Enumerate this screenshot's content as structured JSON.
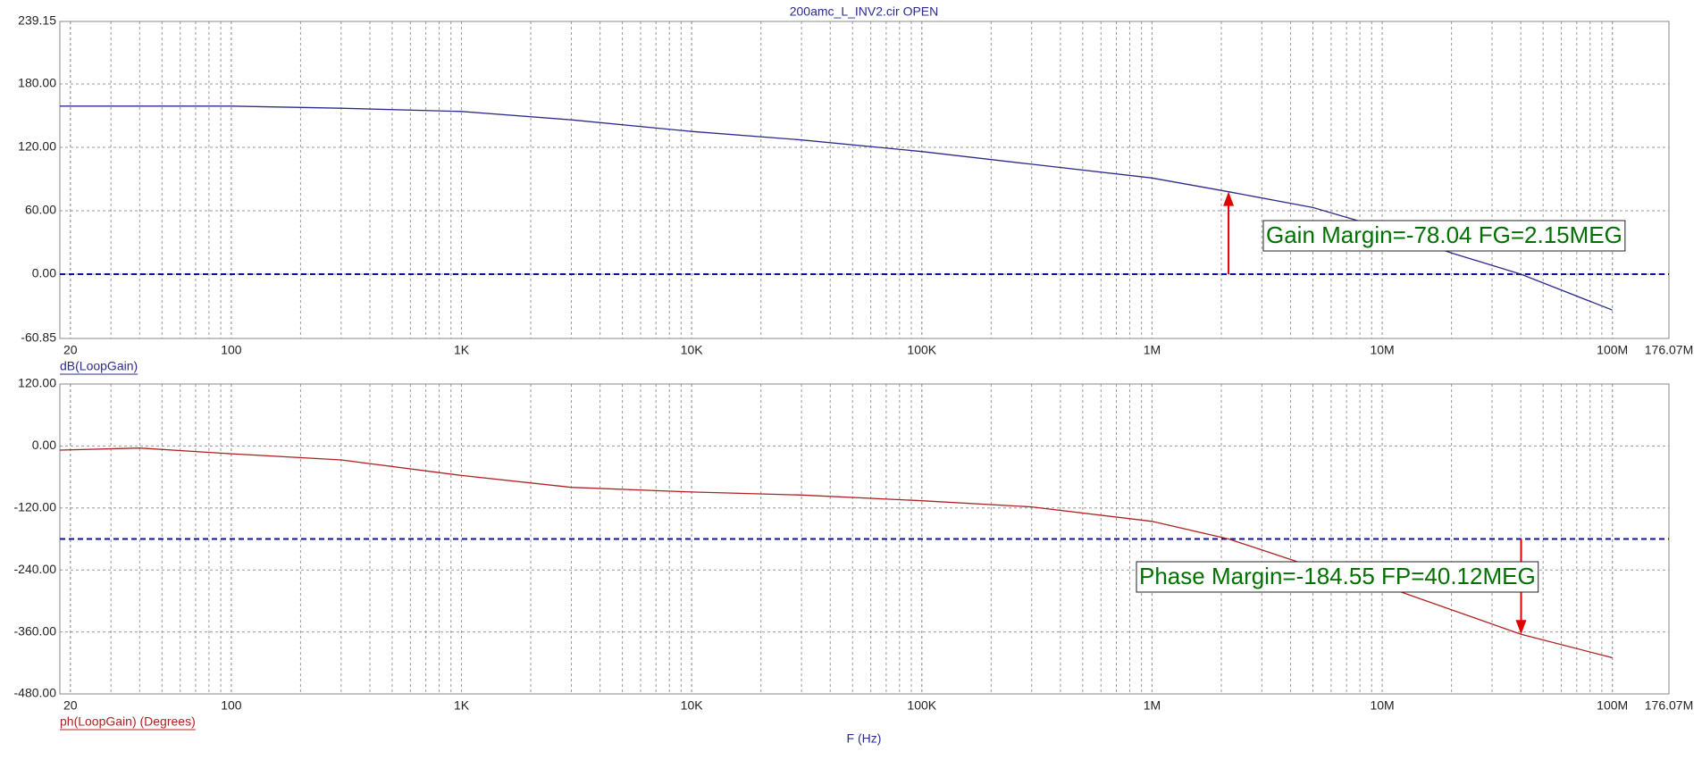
{
  "chart_data": [
    {
      "type": "line",
      "title": "200amc_L_INV2.cir OPEN",
      "log_x": true,
      "grid": true,
      "minor_grid": true,
      "xlim": [
        18,
        176070000
      ],
      "xticks": [
        20,
        100,
        {
          "value": 1000,
          "label": "1K"
        },
        {
          "value": 10000,
          "label": "10K"
        },
        {
          "value": 100000,
          "label": "100K"
        },
        {
          "value": 1000000,
          "label": "1M"
        },
        {
          "value": 10000000,
          "label": "10M"
        },
        {
          "value": 100000000,
          "label": "100M"
        },
        {
          "value": 176070000,
          "label": "176.07M"
        }
      ],
      "ylim": [
        -60.85,
        239.15
      ],
      "yticks": [
        {
          "value": 239.15,
          "label": "239.15"
        },
        {
          "value": 180,
          "label": "180.00"
        },
        {
          "value": 120,
          "label": "120.00"
        },
        {
          "value": 60,
          "label": "60.00"
        },
        {
          "value": 0,
          "label": "0.00"
        },
        {
          "value": -60.85,
          "label": "-60.85"
        }
      ],
      "reference_line": 0,
      "reference_color": "#1010a0",
      "x": [
        18,
        40,
        100,
        300,
        1000,
        3000,
        10000,
        30000,
        100000,
        300000,
        1000000,
        2150000,
        5000000,
        8000000,
        10000000,
        20000000,
        40000000,
        100000000
      ],
      "series": [
        {
          "name": "dB(LoopGain)",
          "color": "#2b2b8c",
          "values": [
            159,
            159,
            159,
            157,
            154,
            146,
            135,
            127,
            116,
            104,
            91,
            78,
            63,
            50,
            42,
            20,
            0,
            -34
          ]
        }
      ],
      "annotation": {
        "text": "Gain Margin=-78.04 FG=2.15MEG",
        "x": 2150000,
        "y_from": 0,
        "y_to": 78.04,
        "color": "#e00000",
        "text_color": "#007000"
      }
    },
    {
      "type": "line",
      "x_label": "F (Hz)",
      "log_x": true,
      "grid": true,
      "minor_grid": true,
      "xlim": [
        18,
        176070000
      ],
      "xticks": [
        20,
        100,
        {
          "value": 1000,
          "label": "1K"
        },
        {
          "value": 10000,
          "label": "10K"
        },
        {
          "value": 100000,
          "label": "100K"
        },
        {
          "value": 1000000,
          "label": "1M"
        },
        {
          "value": 10000000,
          "label": "10M"
        },
        {
          "value": 100000000,
          "label": "100M"
        },
        {
          "value": 176070000,
          "label": "176.07M"
        }
      ],
      "ylim": [
        -480,
        120
      ],
      "yticks": [
        {
          "value": 120,
          "label": "120.00"
        },
        {
          "value": 0,
          "label": "0.00"
        },
        {
          "value": -120,
          "label": "-120.00"
        },
        {
          "value": -240,
          "label": "-240.00"
        },
        {
          "value": -360,
          "label": "-360.00"
        },
        {
          "value": -480,
          "label": "-480.00"
        }
      ],
      "reference_line": -180,
      "reference_color": "#1010a0",
      "x": [
        18,
        40,
        100,
        300,
        1000,
        3000,
        10000,
        30000,
        100000,
        300000,
        1000000,
        2150000,
        5000000,
        10000000,
        40120000,
        100000000
      ],
      "series": [
        {
          "name": "ph(LoopGain) (Degrees)",
          "color": "#b02020",
          "values": [
            -8,
            -4,
            -15,
            -27,
            -57,
            -80,
            -89,
            -95,
            -106,
            -118,
            -146,
            -180,
            -234,
            -270,
            -364.55,
            -410
          ]
        }
      ],
      "annotation": {
        "text": "Phase Margin=-184.55 FP=40.12MEG",
        "x": 40120000,
        "y_from": -180,
        "y_to": -364.55,
        "color": "#e00000",
        "text_color": "#007000"
      }
    }
  ]
}
